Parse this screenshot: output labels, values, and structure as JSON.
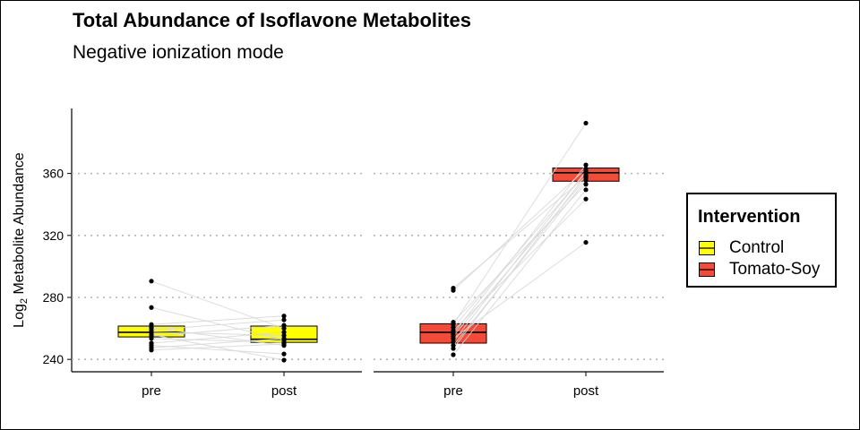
{
  "chart_data": {
    "type": "box",
    "title": "Total Abundance of Isoflavone Metabolites",
    "subtitle": "Negative ionization mode",
    "ylabel_main": "Log",
    "ylabel_sub": "2",
    "ylabel_rest": " Metabolite Abundance",
    "ylim": [
      232,
      402
    ],
    "yticks": [
      240,
      280,
      320,
      360
    ],
    "grid": "horizontal dotted at ticks",
    "legend": {
      "title": "Intervention",
      "placement": "right",
      "entries": [
        {
          "label": "Control",
          "color": "#FFFF00"
        },
        {
          "label": "Tomato-Soy",
          "color": "#F44A38"
        }
      ]
    },
    "panels": [
      {
        "group": "Control",
        "color": "#FFFF00",
        "categories": [
          "pre",
          "post"
        ],
        "boxes": [
          {
            "x": "pre",
            "q1": 254.5,
            "median": 257.5,
            "q3": 261.5
          },
          {
            "x": "post",
            "q1": 251,
            "median": 253,
            "q3": 261.5
          }
        ],
        "pre_points": [
          290.5,
          273.5,
          262.5,
          260.5,
          259,
          257.5,
          256,
          255,
          253.5,
          250.5,
          249,
          247.5,
          246
        ],
        "post_points": [
          268,
          265.5,
          262,
          260,
          257.5,
          255.5,
          253.5,
          252.5,
          251,
          250,
          249,
          243.5,
          239.5
        ]
      },
      {
        "group": "Tomato-Soy",
        "color": "#F44A38",
        "categories": [
          "pre",
          "post"
        ],
        "boxes": [
          {
            "x": "pre",
            "q1": 250.5,
            "median": 257.5,
            "q3": 263
          },
          {
            "x": "post",
            "q1": 355,
            "median": 360.5,
            "q3": 363.5
          }
        ],
        "pre_points": [
          286,
          284.5,
          264,
          262.5,
          260.5,
          258.5,
          256.5,
          255,
          253.5,
          251.5,
          249,
          247,
          243
        ],
        "post_points": [
          392.5,
          365.5,
          363,
          361.5,
          360.5,
          359,
          358,
          357,
          355.5,
          353,
          349.5,
          343.5,
          315.5
        ]
      }
    ]
  }
}
